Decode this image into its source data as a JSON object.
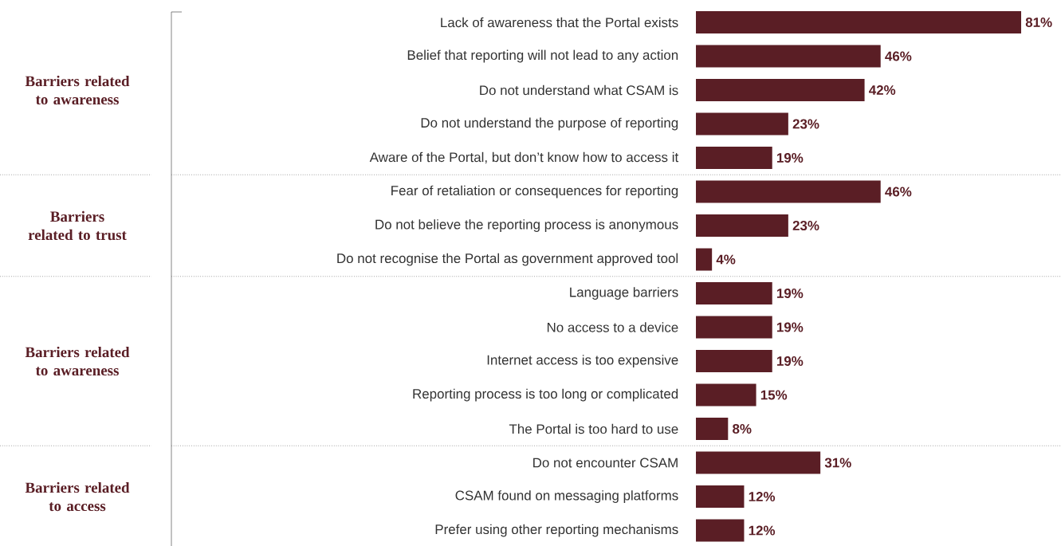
{
  "chart_data": {
    "type": "bar",
    "orientation": "horizontal",
    "tick_labels": "y",
    "color": "#5a1e25",
    "categories": [
      "Lack of awareness that the Portal exists",
      "Belief that reporting will not lead to any action",
      "Do not understand what CSAM is",
      "Do not understand the purpose of reporting",
      "Aware of the Portal, but don’t know how to access it",
      "Fear of retaliation or consequences for reporting",
      "Do not believe the reporting process is anonymous",
      "Do not recognise the Portal as government approved tool",
      "Language barriers",
      "No access to a device",
      "Internet access is too expensive",
      "Reporting process is too long or complicated",
      "The Portal is too hard to use",
      "Do not encounter CSAM",
      "CSAM found on messaging platforms",
      "Prefer using other reporting mechanisms"
    ],
    "values": [
      81,
      46,
      42,
      23,
      19,
      46,
      23,
      4,
      19,
      19,
      19,
      15,
      8,
      31,
      12,
      12
    ],
    "value_labels": [
      "81%",
      "46%",
      "42%",
      "23%",
      "19%",
      "46%",
      "23%",
      "4%",
      "19%",
      "19%",
      "19%",
      "15%",
      "8%",
      "31%",
      "12%",
      "12%"
    ],
    "annotations": [
      "Barriers related to awareness",
      "Barriers related to trust",
      "Barriers related to awareness",
      "Barriers related to access"
    ]
  }
}
